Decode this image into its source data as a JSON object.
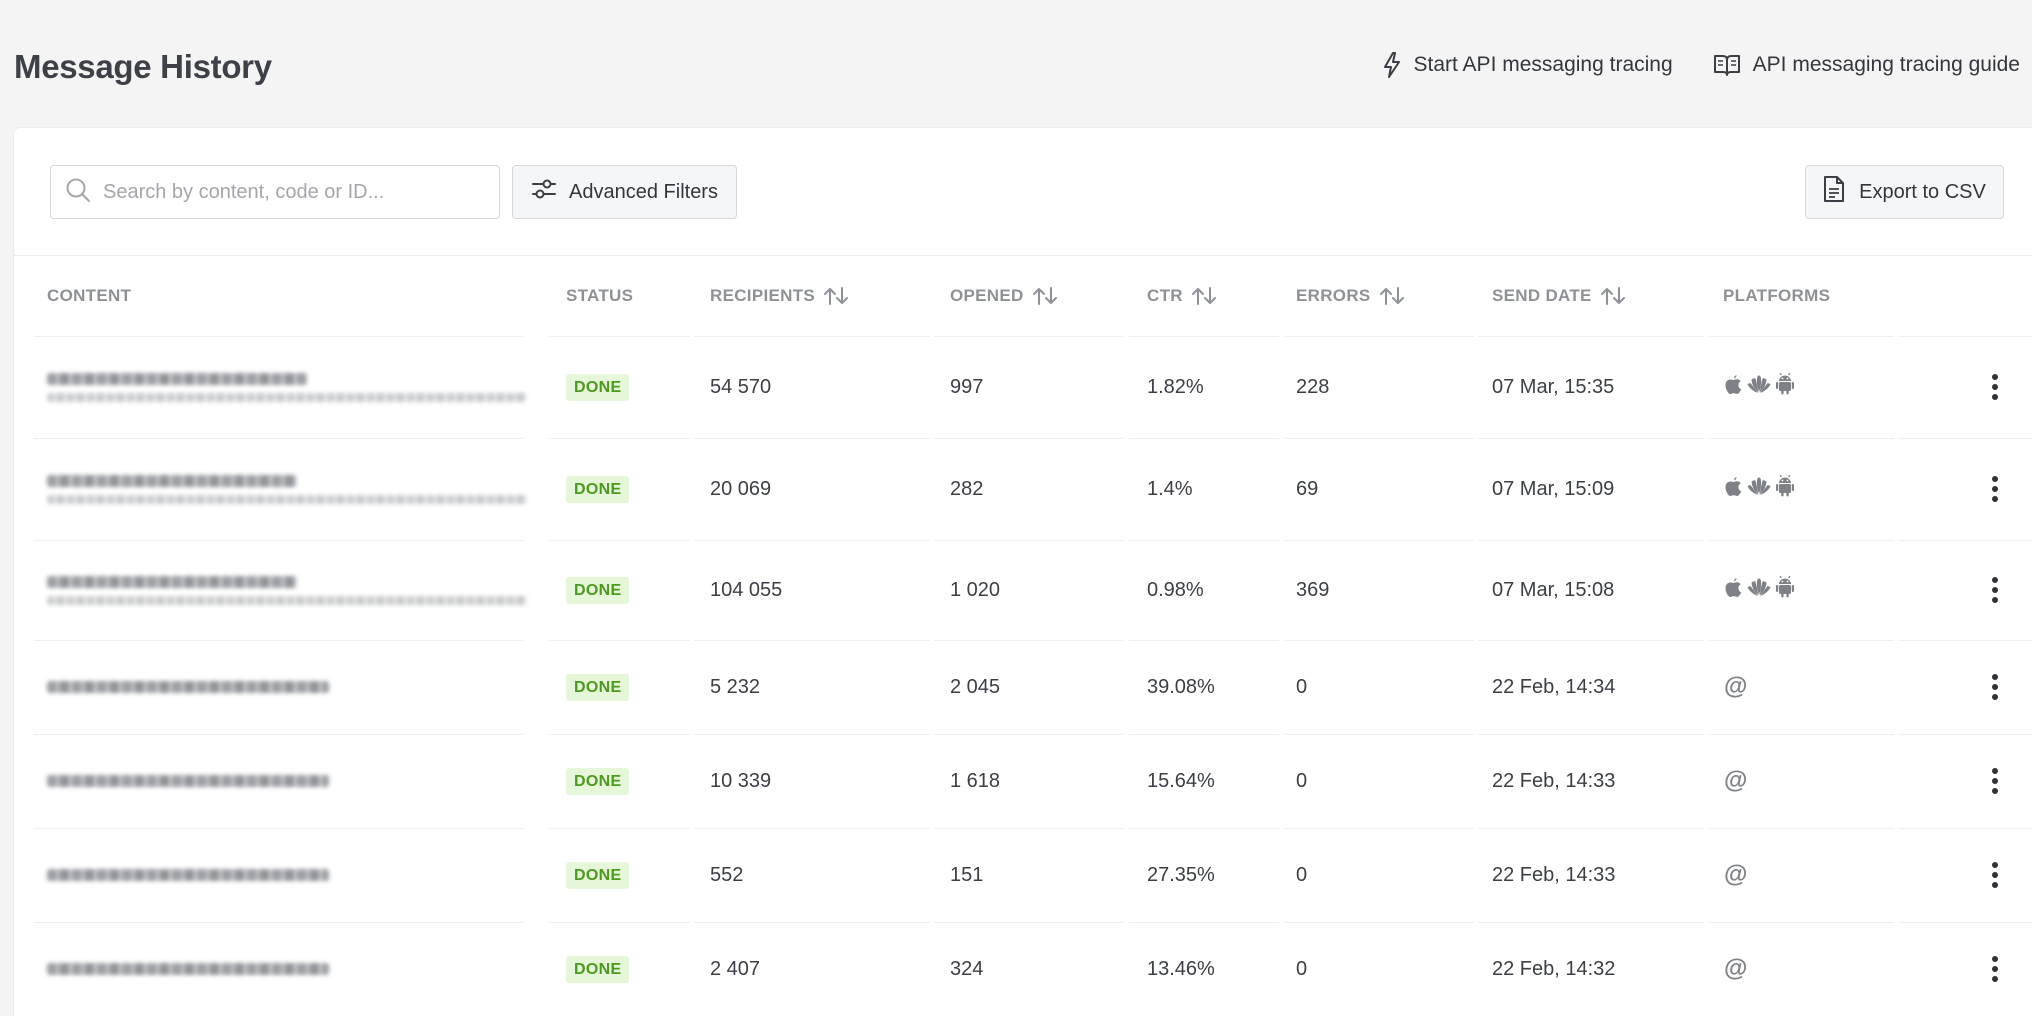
{
  "header": {
    "title": "Message History",
    "start_tracing_label": "Start API messaging tracing",
    "tracing_guide_label": "API messaging tracing guide"
  },
  "toolbar": {
    "search_placeholder": "Search by content, code or ID...",
    "advanced_filters_label": "Advanced Filters",
    "export_label": "Export to CSV"
  },
  "columns": {
    "content": "CONTENT",
    "status": "STATUS",
    "recipients": "RECIPIENTS",
    "opened": "OPENED",
    "ctr": "CTR",
    "errors": "ERRORS",
    "send_date": "SEND DATE",
    "platforms": "PLATFORMS"
  },
  "rows": [
    {
      "status": "DONE",
      "recipients": "54 570",
      "opened": "997",
      "ctr": "1.82%",
      "errors": "228",
      "send_date": "07 Mar, 15:35",
      "platforms": [
        "apple-icon",
        "huawei-icon",
        "android-icon"
      ]
    },
    {
      "status": "DONE",
      "recipients": "20 069",
      "opened": "282",
      "ctr": "1.4%",
      "errors": "69",
      "send_date": "07 Mar, 15:09",
      "platforms": [
        "apple-icon",
        "huawei-icon",
        "android-icon"
      ]
    },
    {
      "status": "DONE",
      "recipients": "104 055",
      "opened": "1 020",
      "ctr": "0.98%",
      "errors": "369",
      "send_date": "07 Mar, 15:08",
      "platforms": [
        "apple-icon",
        "huawei-icon",
        "android-icon"
      ]
    },
    {
      "status": "DONE",
      "recipients": "5 232",
      "opened": "2 045",
      "ctr": "39.08%",
      "errors": "0",
      "send_date": "22 Feb, 14:34",
      "platforms": [
        "email-icon"
      ],
      "email_symbol": "@"
    },
    {
      "status": "DONE",
      "recipients": "10 339",
      "opened": "1 618",
      "ctr": "15.64%",
      "errors": "0",
      "send_date": "22 Feb, 14:33",
      "platforms": [
        "email-icon"
      ],
      "email_symbol": "@"
    },
    {
      "status": "DONE",
      "recipients": "552",
      "opened": "151",
      "ctr": "27.35%",
      "errors": "0",
      "send_date": "22 Feb, 14:33",
      "platforms": [
        "email-icon"
      ],
      "email_symbol": "@"
    },
    {
      "status": "DONE",
      "recipients": "2 407",
      "opened": "324",
      "ctr": "13.46%",
      "errors": "0",
      "send_date": "22 Feb, 14:32",
      "platforms": [
        "email-icon"
      ],
      "email_symbol": "@"
    }
  ],
  "colors": {
    "done_badge_bg": "#e6f6d8",
    "done_badge_text": "#4c9a1f",
    "muted_header": "#8e9297"
  }
}
